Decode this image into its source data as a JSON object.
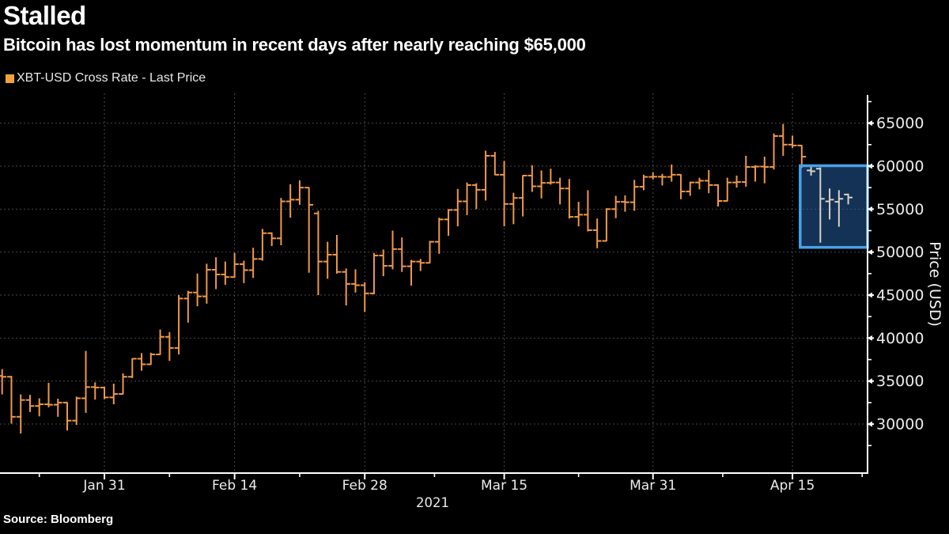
{
  "header": {
    "title": "Stalled",
    "subtitle": "Bitcoin has lost momentum in recent days after nearly reaching $65,000"
  },
  "legend": {
    "label": "XBT-USD Cross Rate - Last Price",
    "swatch_color": "#f2a23c"
  },
  "source_line": "Source: Bloomberg",
  "chart_data": {
    "type": "ohlc-bar",
    "title": "Stalled",
    "ylabel": "Price (USD)",
    "year_label": "2021",
    "ylim": [
      24300,
      68280
    ],
    "grid": true,
    "legend_position": "top-left",
    "y_major_ticks": [
      30000,
      35000,
      40000,
      45000,
      50000,
      55000,
      60000,
      65000
    ],
    "y_minor_ticks": [
      27500,
      32500,
      37500,
      42500,
      47500,
      52500,
      57500,
      62500,
      67500
    ],
    "x_major_ticks": [
      "Jan 31",
      "Feb 14",
      "Feb 28",
      "Mar 15",
      "Mar 31",
      "Apr 15"
    ],
    "colors": {
      "bar": "#ef9849",
      "grid": "#474747",
      "axis": "#ffffff",
      "tick_label": "#ececec",
      "year_label": "#e8e8e8"
    },
    "highlight": {
      "meaning": "recent days where bitcoin stalled",
      "bars_from": "Apr 17",
      "box_left_date": "Apr 16",
      "price_top": 60050,
      "price_bottom": 50550,
      "border_color": "#4aa0ea",
      "fill_color": "rgba(40,100,170,0.5)",
      "bar_color": "#d7d3c7"
    },
    "series": [
      {
        "name": "XBT-USD Cross Rate - Last Price",
        "color": "#ef9849",
        "points": [
          [
            "Jan 20",
            35600,
            36400,
            33450,
            35500
          ],
          [
            "Jan 21",
            35500,
            35600,
            30050,
            30850
          ],
          [
            "Jan 22",
            30850,
            33450,
            28900,
            32800
          ],
          [
            "Jan 23",
            32800,
            33400,
            31400,
            32100
          ],
          [
            "Jan 24",
            32100,
            33000,
            30900,
            32300
          ],
          [
            "Jan 25",
            32300,
            34800,
            31950,
            32250
          ],
          [
            "Jan 26",
            32250,
            32950,
            30850,
            32500
          ],
          [
            "Jan 27",
            32500,
            32550,
            29250,
            30400
          ],
          [
            "Jan 28",
            30400,
            33200,
            29900,
            33000
          ],
          [
            "Jan 29",
            33000,
            38500,
            31300,
            34300
          ],
          [
            "Jan 30",
            34300,
            34850,
            32850,
            34250
          ],
          [
            "Jan 31",
            34250,
            34350,
            32900,
            33100
          ],
          [
            "Feb 1",
            33100,
            34700,
            32300,
            33500
          ],
          [
            "Feb 2",
            33500,
            35900,
            33450,
            35500
          ],
          [
            "Feb 3",
            35500,
            37650,
            35350,
            37600
          ],
          [
            "Feb 4",
            37600,
            38250,
            36200,
            36950
          ],
          [
            "Feb 5",
            36950,
            38300,
            36900,
            38100
          ],
          [
            "Feb 6",
            38100,
            41000,
            38050,
            40150
          ],
          [
            "Feb 7",
            40150,
            40700,
            37350,
            38850
          ],
          [
            "Feb 8",
            38850,
            45000,
            38100,
            44600
          ],
          [
            "Feb 9",
            44600,
            45500,
            41800,
            45300
          ],
          [
            "Feb 10",
            45300,
            47500,
            43700,
            44850
          ],
          [
            "Feb 11",
            44850,
            48650,
            44000,
            47950
          ],
          [
            "Feb 12",
            47950,
            49400,
            45700,
            47400
          ],
          [
            "Feb 13",
            47400,
            48900,
            46200,
            47100
          ],
          [
            "Feb 14",
            47100,
            49900,
            47000,
            48600
          ],
          [
            "Feb 15",
            48600,
            49000,
            46400,
            47900
          ],
          [
            "Feb 16",
            47900,
            50500,
            47000,
            49200
          ],
          [
            "Feb 17",
            49200,
            52700,
            49000,
            52200
          ],
          [
            "Feb 18",
            52200,
            52300,
            50700,
            51600
          ],
          [
            "Feb 19",
            51600,
            56300,
            50800,
            55900
          ],
          [
            "Feb 20",
            55900,
            57900,
            54000,
            56100
          ],
          [
            "Feb 21",
            56100,
            58350,
            55500,
            57500
          ],
          [
            "Feb 22",
            57500,
            57550,
            47600,
            55500
          ],
          [
            "Feb 23",
            54500,
            54800,
            45000,
            48900
          ],
          [
            "Feb 24",
            48900,
            51200,
            46900,
            49700
          ],
          [
            "Feb 25",
            49700,
            52000,
            47500,
            47700
          ],
          [
            "Feb 26",
            47700,
            48100,
            43800,
            46300
          ],
          [
            "Feb 27",
            46300,
            48000,
            45300,
            46150
          ],
          [
            "Feb 28",
            46150,
            46500,
            43050,
            45200
          ],
          [
            "Mar 1",
            45200,
            49900,
            45100,
            49600
          ],
          [
            "Mar 2",
            49600,
            50300,
            47200,
            48400
          ],
          [
            "Mar 3",
            48400,
            52500,
            48000,
            50350
          ],
          [
            "Mar 4",
            50350,
            51700,
            47700,
            48350
          ],
          [
            "Mar 5",
            48350,
            49100,
            46100,
            48900
          ],
          [
            "Mar 6",
            48900,
            49200,
            47800,
            48750
          ],
          [
            "Mar 7",
            48750,
            51300,
            48700,
            51200
          ],
          [
            "Mar 8",
            51200,
            54000,
            49800,
            53800
          ],
          [
            "Mar 9",
            53800,
            55000,
            51900,
            54900
          ],
          [
            "Mar 10",
            54900,
            57350,
            53000,
            55900
          ],
          [
            "Mar 11",
            55900,
            58100,
            54300,
            57800
          ],
          [
            "Mar 12",
            57800,
            58000,
            55000,
            57250
          ],
          [
            "Mar 13",
            57250,
            61800,
            56000,
            61200
          ],
          [
            "Mar 14",
            61200,
            61650,
            58950,
            59000
          ],
          [
            "Mar 15",
            59000,
            60600,
            53000,
            55600
          ],
          [
            "Mar 16",
            55600,
            56900,
            53250,
            56300
          ],
          [
            "Mar 17",
            56300,
            58950,
            54150,
            58900
          ],
          [
            "Mar 18",
            58900,
            60100,
            57000,
            57650
          ],
          [
            "Mar 19",
            57650,
            59500,
            56250,
            58050
          ],
          [
            "Mar 20",
            58050,
            59700,
            57850,
            58100
          ],
          [
            "Mar 21",
            58100,
            58650,
            55550,
            57400
          ],
          [
            "Mar 22",
            57400,
            58500,
            53900,
            54100
          ],
          [
            "Mar 23",
            54100,
            55850,
            53000,
            54350
          ],
          [
            "Mar 24",
            54350,
            57200,
            52400,
            52550
          ],
          [
            "Mar 25",
            52550,
            53900,
            50450,
            51300
          ],
          [
            "Mar 26",
            51300,
            55100,
            51250,
            55000
          ],
          [
            "Mar 27",
            55000,
            56550,
            53950,
            55850
          ],
          [
            "Mar 28",
            55850,
            56600,
            54700,
            55800
          ],
          [
            "Mar 29",
            55800,
            58400,
            54800,
            57600
          ],
          [
            "Mar 30",
            57600,
            59000,
            57200,
            58750
          ],
          [
            "Mar 31",
            58750,
            59300,
            58450,
            58770
          ],
          [
            "Apr 1",
            58770,
            59100,
            57750,
            58750
          ],
          [
            "Apr 2",
            58750,
            60180,
            58200,
            59000
          ],
          [
            "Apr 3",
            59000,
            59050,
            56150,
            57050
          ],
          [
            "Apr 4",
            57050,
            58200,
            56550,
            58100
          ],
          [
            "Apr 5",
            58100,
            58650,
            57300,
            58300
          ],
          [
            "Apr 6",
            58300,
            59550,
            56850,
            57800
          ],
          [
            "Apr 7",
            57800,
            57900,
            55300,
            55950
          ],
          [
            "Apr 8",
            55950,
            58650,
            55900,
            58100
          ],
          [
            "Apr 9",
            58100,
            58900,
            57500,
            58150
          ],
          [
            "Apr 10",
            58150,
            61200,
            57600,
            59900
          ],
          [
            "Apr 11",
            59900,
            60100,
            58200,
            59950
          ],
          [
            "Apr 12",
            59950,
            61100,
            58000,
            59900
          ],
          [
            "Apr 13",
            59900,
            63800,
            59600,
            63500
          ],
          [
            "Apr 14",
            63500,
            64900,
            61200,
            62500
          ],
          [
            "Apr 15",
            62500,
            63550,
            62100,
            62400
          ],
          [
            "Apr 16",
            62400,
            62450,
            59800,
            61100
          ],
          [
            "Apr 17",
            59500,
            60000,
            58900,
            59400
          ],
          [
            "Apr 18",
            59700,
            59850,
            51100,
            56200
          ],
          [
            "Apr 19",
            55900,
            57400,
            53800,
            56100
          ],
          [
            "Apr 20",
            55850,
            57200,
            52950,
            56200
          ],
          [
            "Apr 21",
            56700,
            56800,
            55550,
            56350
          ]
        ]
      }
    ]
  }
}
